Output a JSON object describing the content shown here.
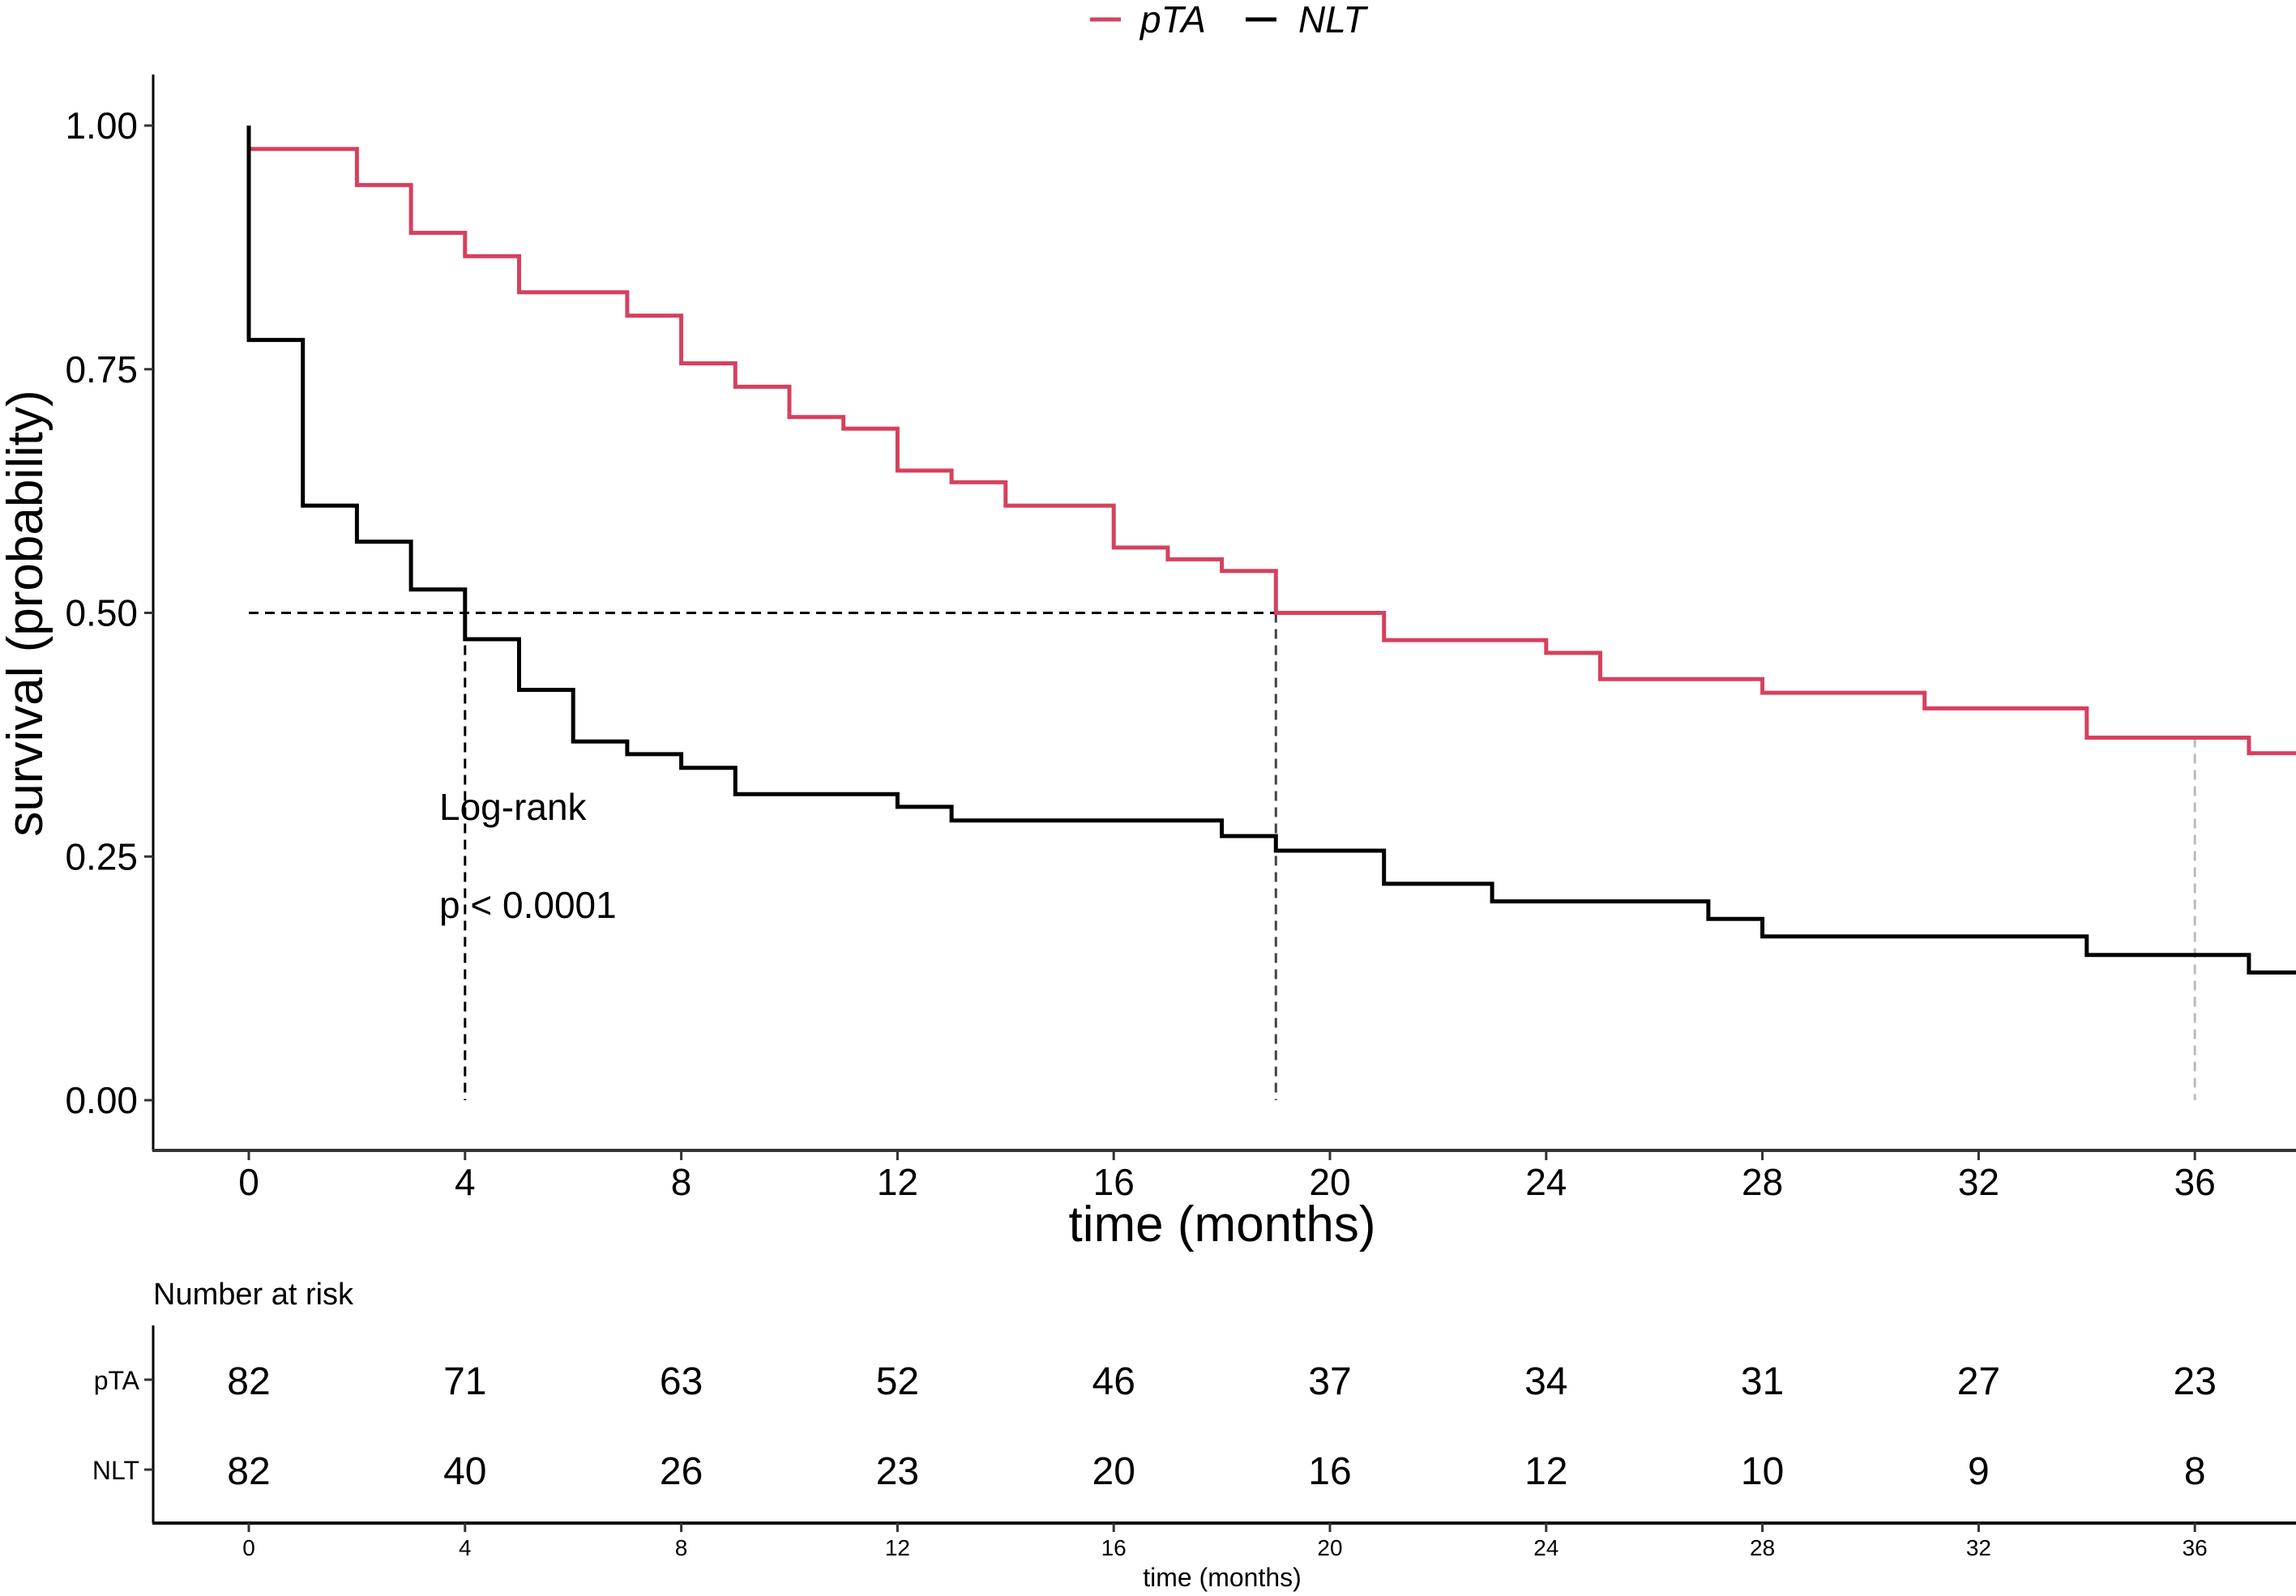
{
  "chart_data": {
    "type": "line",
    "subtype": "kaplan-meier step",
    "legend": {
      "placement": "top-center",
      "entries": [
        {
          "name": "pTA",
          "color": "#D6405E"
        },
        {
          "name": "NLT",
          "color": "#000000"
        }
      ]
    },
    "xlabel": "time (months)",
    "ylabel": "survival (probability)",
    "xlim": [
      -1.8,
      38
    ],
    "ylim": [
      0,
      1
    ],
    "xticks": [
      0,
      4,
      8,
      12,
      16,
      20,
      24,
      28,
      32,
      36
    ],
    "yticks": [
      "0.00",
      "0.25",
      "0.50",
      "0.75",
      "1.00"
    ],
    "yticks_values": [
      0,
      0.25,
      0.5,
      0.75,
      1.0
    ],
    "grid": false,
    "series": [
      {
        "name": "pTA",
        "color": "#D6405E",
        "steps": [
          [
            0,
            0.976
          ],
          [
            2,
            0.939
          ],
          [
            3,
            0.89
          ],
          [
            4,
            0.866
          ],
          [
            5,
            0.829
          ],
          [
            7,
            0.805
          ],
          [
            8,
            0.756
          ],
          [
            9,
            0.732
          ],
          [
            10,
            0.701
          ],
          [
            11,
            0.689
          ],
          [
            12,
            0.646
          ],
          [
            13,
            0.634
          ],
          [
            14,
            0.61
          ],
          [
            16,
            0.567
          ],
          [
            17,
            0.555
          ],
          [
            18,
            0.543
          ],
          [
            19,
            0.5
          ],
          [
            21,
            0.472
          ],
          [
            24,
            0.459
          ],
          [
            25,
            0.432
          ],
          [
            28,
            0.418
          ],
          [
            31,
            0.402
          ],
          [
            34,
            0.372
          ],
          [
            37,
            0.356
          ]
        ],
        "start": [
          0,
          1.0
        ],
        "end_time": 38
      },
      {
        "name": "NLT",
        "color": "#000000",
        "steps": [
          [
            0,
            0.78
          ],
          [
            1,
            0.61
          ],
          [
            2,
            0.573
          ],
          [
            3,
            0.524
          ],
          [
            4,
            0.473
          ],
          [
            5,
            0.421
          ],
          [
            6,
            0.368
          ],
          [
            7,
            0.355
          ],
          [
            8,
            0.341
          ],
          [
            9,
            0.314
          ],
          [
            12,
            0.301
          ],
          [
            13,
            0.287
          ],
          [
            18,
            0.271
          ],
          [
            19,
            0.256
          ],
          [
            21,
            0.222
          ],
          [
            23,
            0.204
          ],
          [
            27,
            0.186
          ],
          [
            28,
            0.168
          ],
          [
            34,
            0.149
          ],
          [
            37,
            0.131
          ]
        ],
        "start": [
          0,
          1.0
        ],
        "end_time": 38
      }
    ],
    "median_lines": [
      {
        "series": "NLT",
        "time": 4,
        "survival": 0.5,
        "color": "#000000"
      },
      {
        "series": "pTA",
        "time": 19,
        "survival": 0.5,
        "color": "#444444"
      },
      {
        "series": "pTA",
        "time": 36,
        "survival": 0.372,
        "color": "#BBBBBB"
      }
    ],
    "annotations": {
      "test": "Log-rank",
      "pvalue": "p < 0.0001",
      "at": [
        4,
        0.27
      ]
    },
    "risk_table": {
      "title": "Number at risk",
      "xlabel": "time (months)",
      "times": [
        0,
        4,
        8,
        12,
        16,
        20,
        24,
        28,
        32,
        36
      ],
      "rows": [
        {
          "name": "pTA",
          "color": "#D6405E",
          "values": [
            82,
            71,
            63,
            52,
            46,
            37,
            34,
            31,
            27,
            23
          ]
        },
        {
          "name": "NLT",
          "color": "#000000",
          "values": [
            82,
            40,
            26,
            23,
            20,
            16,
            12,
            10,
            9,
            8
          ]
        }
      ]
    }
  }
}
